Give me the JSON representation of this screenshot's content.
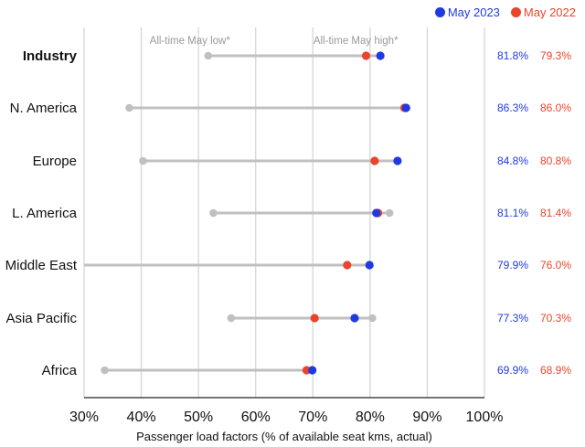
{
  "chart_data": {
    "type": "scatter",
    "title": "",
    "xlabel": "Passenger load factors (% of available seat kms, actual)",
    "xlim": [
      30,
      100
    ],
    "x_ticks": [
      "30%",
      "40%",
      "50%",
      "60%",
      "70%",
      "80%",
      "90%",
      "100%"
    ],
    "x_tick_values": [
      30,
      40,
      50,
      60,
      70,
      80,
      90,
      100
    ],
    "grid": true,
    "legend_position": "top-right",
    "annotations": [
      "All-time May low*",
      "All-time May high*"
    ],
    "categories": [
      "Industry",
      "N. America",
      "Europe",
      "L. America",
      "Middle East",
      "Asia Pacific",
      "Africa"
    ],
    "range_low": [
      51.7,
      37.9,
      40.3,
      52.6,
      30.0,
      55.7,
      33.6
    ],
    "range_high": [
      81.8,
      86.3,
      84.8,
      83.4,
      79.9,
      80.4,
      69.9
    ],
    "series": [
      {
        "name": "May 2023",
        "color": "#1f3ae0",
        "values": [
          81.8,
          86.3,
          84.8,
          81.1,
          79.9,
          77.3,
          69.9
        ],
        "labels": [
          "81.8%",
          "86.3%",
          "84.8%",
          "81.1%",
          "79.9%",
          "77.3%",
          "69.9%"
        ]
      },
      {
        "name": "May 2022",
        "color": "#e8452c",
        "values": [
          79.3,
          86.0,
          80.8,
          81.4,
          76.0,
          70.3,
          68.9
        ],
        "labels": [
          "79.3%",
          "86.0%",
          "80.8%",
          "81.4%",
          "76.0%",
          "70.3%",
          "68.9%"
        ]
      }
    ],
    "range_color": "#c0c0c0",
    "grid_color": "#d9d9d9"
  }
}
